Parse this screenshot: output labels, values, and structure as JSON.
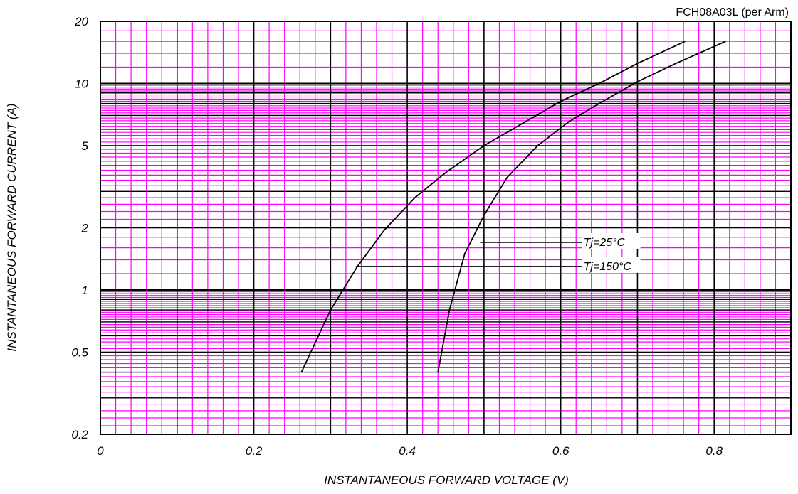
{
  "chart_data": {
    "type": "line",
    "title": "FCH08A03L (per Arm)",
    "xlabel": "INSTANTANEOUS FORWARD VOLTAGE (V)",
    "ylabel": "INSTANTANEOUS FORWARD CURRENT (A)",
    "xlim": [
      0,
      0.9
    ],
    "ylim": [
      0.2,
      20
    ],
    "yscale": "log",
    "x_ticks": [
      "0",
      "0.2",
      "0.4",
      "0.6",
      "0.8"
    ],
    "y_ticks": [
      "0.2",
      "0.5",
      "1",
      "2",
      "5",
      "10",
      "20"
    ],
    "grid": true,
    "colors": {
      "minor_grid": "#ff00ff",
      "major_grid": "#000000",
      "curve": "#000000"
    },
    "series": [
      {
        "name": "Tj=25°C",
        "x": [
          0.44,
          0.455,
          0.475,
          0.5,
          0.53,
          0.57,
          0.61,
          0.65,
          0.7,
          0.75,
          0.815
        ],
        "y": [
          0.4,
          0.8,
          1.5,
          2.3,
          3.5,
          5.0,
          6.5,
          8.0,
          10.2,
          12.5,
          16.0
        ]
      },
      {
        "name": "Tj=150°C",
        "x": [
          0.262,
          0.3,
          0.335,
          0.37,
          0.41,
          0.45,
          0.5,
          0.55,
          0.6,
          0.65,
          0.7,
          0.762
        ],
        "y": [
          0.4,
          0.8,
          1.3,
          1.95,
          2.8,
          3.7,
          5.0,
          6.4,
          8.2,
          10.0,
          12.5,
          16.0
        ]
      }
    ],
    "annotations": [
      {
        "text": "Tj=25°C",
        "x": 0.495,
        "y": 1.7,
        "label_x": 0.6,
        "label_y": 1.7
      },
      {
        "text": "Tj=150°C",
        "x": 0.333,
        "y": 1.3,
        "label_x": 0.6,
        "label_y": 1.3
      }
    ]
  }
}
